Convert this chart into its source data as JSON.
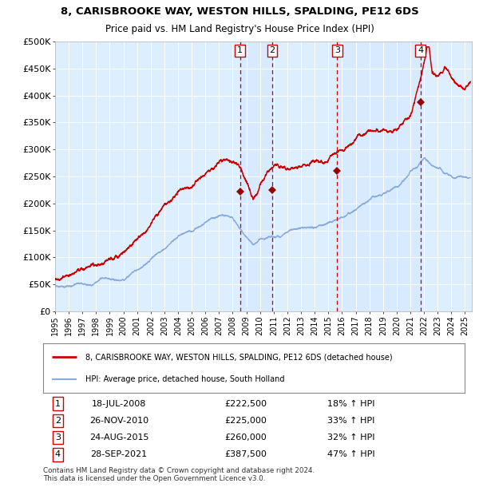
{
  "title1": "8, CARISBROOKE WAY, WESTON HILLS, SPALDING, PE12 6DS",
  "title2": "Price paid vs. HM Land Registry's House Price Index (HPI)",
  "xlim": [
    1995.0,
    2025.5
  ],
  "ylim": [
    0,
    500000
  ],
  "yticks": [
    0,
    50000,
    100000,
    150000,
    200000,
    250000,
    300000,
    350000,
    400000,
    450000,
    500000
  ],
  "ytick_labels": [
    "£0",
    "£50K",
    "£100K",
    "£150K",
    "£200K",
    "£250K",
    "£300K",
    "£350K",
    "£400K",
    "£450K",
    "£500K"
  ],
  "xticks": [
    1995,
    1996,
    1997,
    1998,
    1999,
    2000,
    2001,
    2002,
    2003,
    2004,
    2005,
    2006,
    2007,
    2008,
    2009,
    2010,
    2011,
    2012,
    2013,
    2014,
    2015,
    2016,
    2017,
    2018,
    2019,
    2020,
    2021,
    2022,
    2023,
    2024,
    2025
  ],
  "red_line_color": "#cc0000",
  "blue_line_color": "#88aadd",
  "background_color": "#ddeeff",
  "sale_dates": [
    2008.54,
    2010.9,
    2015.64,
    2021.74
  ],
  "sale_prices": [
    222500,
    225000,
    260000,
    387500
  ],
  "vline_color": "#cc0000",
  "sale_labels": [
    "1",
    "2",
    "3",
    "4"
  ],
  "legend1": "8, CARISBROOKE WAY, WESTON HILLS, SPALDING, PE12 6DS (detached house)",
  "legend2": "HPI: Average price, detached house, South Holland",
  "table_data": [
    [
      "1",
      "18-JUL-2008",
      "£222,500",
      "18% ↑ HPI"
    ],
    [
      "2",
      "26-NOV-2010",
      "£225,000",
      "33% ↑ HPI"
    ],
    [
      "3",
      "24-AUG-2015",
      "£260,000",
      "32% ↑ HPI"
    ],
    [
      "4",
      "28-SEP-2021",
      "£387,500",
      "47% ↑ HPI"
    ]
  ],
  "footnote": "Contains HM Land Registry data © Crown copyright and database right 2024.\nThis data is licensed under the Open Government Licence v3.0."
}
